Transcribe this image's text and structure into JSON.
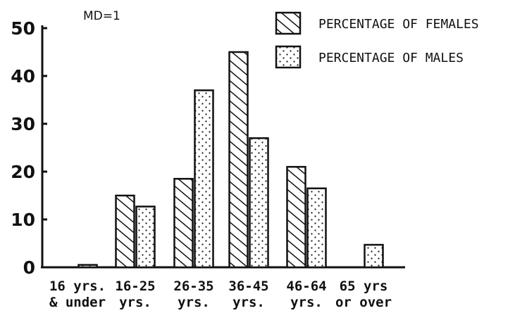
{
  "chart_data": {
    "type": "bar",
    "note": "MD=1",
    "categories": [
      [
        "16 yrs.",
        "& under"
      ],
      [
        "16-25",
        "yrs."
      ],
      [
        "26-35",
        "yrs."
      ],
      [
        "36-45",
        "yrs."
      ],
      [
        "46-64",
        "yrs."
      ],
      [
        "65 yrs",
        "or over"
      ]
    ],
    "series": [
      {
        "name": "PERCENTAGE OF FEMALES",
        "pattern": "hatch",
        "values": [
          0,
          15,
          18.5,
          45,
          21,
          0
        ]
      },
      {
        "name": "PERCENTAGE OF MALES",
        "pattern": "dots",
        "values": [
          0.5,
          12.7,
          37,
          27,
          16.5,
          4.7
        ]
      }
    ],
    "ylim": [
      0,
      50
    ],
    "yticks": [
      0,
      10,
      20,
      30,
      40,
      50
    ],
    "xlabel": "",
    "ylabel": "",
    "legend": "top-right",
    "grid": false,
    "colors": {
      "ink": "#111111",
      "background": "#ffffff"
    }
  }
}
